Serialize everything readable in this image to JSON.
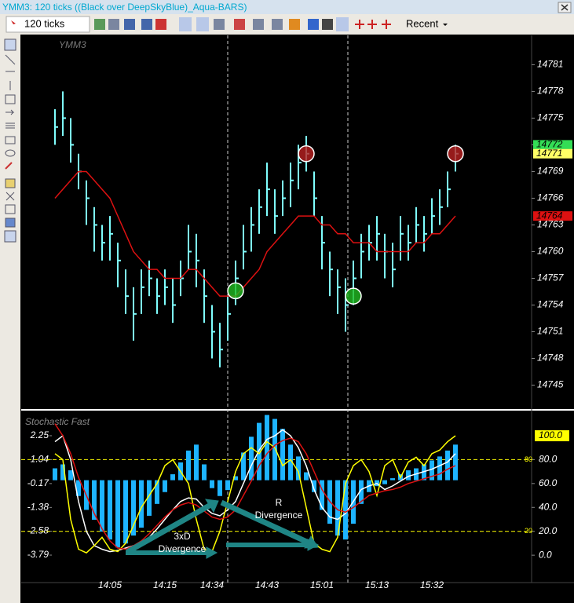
{
  "window": {
    "title": "YMM3: 120 ticks ((Black over DeepSkyBlue)_Aqua-BARS)"
  },
  "toolbar": {
    "interval": "120 ticks",
    "template": "Recent"
  },
  "chart_data": [
    {
      "type": "ohlc",
      "title": "YMM3",
      "ylim": [
        14742.4,
        14784.3
      ],
      "yticks": [
        14745,
        14748,
        14751,
        14754,
        14757,
        14760,
        14763,
        14766,
        14769,
        14772,
        14775,
        14778,
        14781
      ],
      "series": [
        {
          "style": "bars",
          "color": "#7fffff",
          "high": [
            14776,
            14778,
            14775,
            14771,
            14768,
            14765,
            14763,
            14764,
            14761,
            14758,
            14756,
            14758,
            14759,
            14757,
            14758,
            14757,
            14759,
            14763,
            14762,
            14758,
            14754,
            14752,
            14755,
            14759,
            14763,
            14765,
            14767,
            14770,
            14767,
            14768,
            14770,
            14772,
            14773,
            14769,
            14764,
            14760,
            14758,
            14757,
            14759,
            14762,
            14763,
            14764,
            14762,
            14761,
            14764,
            14763,
            14765,
            14764,
            14766,
            14767,
            14769,
            14772
          ],
          "low": [
            14772,
            14773,
            14770,
            14767,
            14763,
            14760,
            14759,
            14759,
            14756,
            14753,
            14750,
            14753,
            14755,
            14753,
            14754,
            14752,
            14755,
            14758,
            14756,
            14752,
            14748,
            14747,
            14750,
            14754,
            14758,
            14760,
            14762,
            14764,
            14762,
            14764,
            14765,
            14767,
            14769,
            14764,
            14758,
            14755,
            14753,
            14751,
            14754,
            14757,
            14759,
            14759,
            14757,
            14756,
            14759,
            14759,
            14761,
            14760,
            14762,
            14763,
            14765,
            14769
          ],
          "close": [
            14774,
            14775,
            14772,
            14769,
            14766,
            14763,
            14761,
            14762,
            14759,
            14755,
            14753,
            14756,
            14757,
            14755,
            14756,
            14754,
            14757,
            14760,
            14759,
            14755,
            14751,
            14749,
            14753,
            14757,
            14760,
            14763,
            14765,
            14767,
            14764,
            14766,
            14768,
            14770,
            14771,
            14766,
            14761,
            14758,
            14756,
            14754,
            14757,
            14760,
            14761,
            14762,
            14760,
            14758,
            14762,
            14761,
            14763,
            14762,
            14764,
            14765,
            14767,
            14771
          ]
        },
        {
          "style": "line",
          "color": "#dd1111",
          "values": [
            14766,
            14767,
            14768,
            14769,
            14769,
            14768,
            14767,
            14766,
            14764,
            14762,
            14760,
            14759,
            14758,
            14758,
            14757,
            14757,
            14757,
            14758,
            14758,
            14757,
            14756,
            14755,
            14755,
            14755,
            14756,
            14757,
            14758,
            14760,
            14761,
            14762,
            14763,
            14764,
            14764,
            14764,
            14763,
            14763,
            14762,
            14762,
            14761,
            14761,
            14761,
            14760,
            14760,
            14760,
            14760,
            14760,
            14761,
            14761,
            14762,
            14762,
            14763,
            14764
          ]
        },
        {
          "style": "circle",
          "color": "#22bb22",
          "values": [
            null,
            null,
            null,
            null,
            null,
            null,
            null,
            null,
            null,
            null,
            null,
            null,
            null,
            null,
            null,
            null,
            null,
            null,
            null,
            null,
            null,
            null,
            null,
            14755.6,
            null,
            null,
            null,
            null,
            null,
            null,
            null,
            null,
            null,
            null,
            null,
            null,
            null,
            null,
            14755,
            null,
            null,
            null,
            null,
            null,
            null,
            null,
            null,
            null,
            null,
            null,
            null,
            null
          ]
        },
        {
          "style": "circle",
          "color": "#bb2222",
          "values": [
            null,
            null,
            null,
            null,
            null,
            null,
            null,
            null,
            null,
            null,
            null,
            null,
            null,
            null,
            null,
            null,
            null,
            null,
            null,
            null,
            null,
            null,
            null,
            null,
            null,
            null,
            null,
            null,
            null,
            null,
            null,
            null,
            14771,
            null,
            null,
            null,
            null,
            null,
            null,
            null,
            null,
            null,
            null,
            null,
            null,
            null,
            null,
            null,
            null,
            null,
            null,
            14771
          ]
        }
      ],
      "price_tags": [
        {
          "value": 14772,
          "color": "#33dd55"
        },
        {
          "value": 14771,
          "color": "#ffff66"
        },
        {
          "value": 14764,
          "color": "#dd1111"
        }
      ]
    },
    {
      "type": "stochastic",
      "title": "Stochastic Fast",
      "categories": [
        null,
        null,
        null,
        null,
        null,
        null,
        null,
        "14:05",
        null,
        null,
        null,
        null,
        null,
        null,
        "14:15",
        null,
        null,
        null,
        null,
        null,
        "14:34",
        null,
        null,
        null,
        null,
        null,
        null,
        "14:43",
        null,
        null,
        null,
        null,
        null,
        null,
        "15:01",
        null,
        null,
        null,
        null,
        null,
        null,
        "15:13",
        null,
        null,
        null,
        null,
        null,
        null,
        "15:32",
        null,
        null,
        null
      ],
      "ylim": [
        -5.1,
        3.44
      ],
      "yticks": [
        2.25,
        1.04,
        -0.17,
        -1.38,
        -2.58,
        -3.79
      ],
      "y2lim": [
        -21.6,
        119.7
      ],
      "y2ticks": [
        {
          "value": 80,
          "label": "80.0"
        },
        {
          "value": 60,
          "label": "60.0"
        },
        {
          "value": 40,
          "label": "40.0"
        },
        {
          "value": 20,
          "label": "20.0"
        },
        {
          "value": 0,
          "label": "0.0"
        }
      ],
      "levels": [
        80,
        20
      ],
      "tag": {
        "value": 100,
        "label": "100.0",
        "color": "#ffff00"
      },
      "series": [
        {
          "style": "histogram",
          "color": "#1eb4ff",
          "values": [
            0.6,
            0.8,
            0.5,
            -0.8,
            -1.5,
            -2.0,
            -2.6,
            -3.0,
            -3.4,
            -3.2,
            -2.8,
            -2.4,
            -1.8,
            -1.2,
            -0.6,
            0.3,
            0.9,
            1.5,
            1.8,
            0.8,
            -0.4,
            -0.8,
            -0.5,
            0.2,
            1.4,
            2.2,
            2.9,
            3.3,
            3.1,
            2.6,
            1.8,
            1.2,
            0.4,
            -0.6,
            -1.5,
            -2.2,
            -2.8,
            -3.0,
            -2.2,
            -1.2,
            -0.6,
            -0.3,
            -0.2,
            0.1,
            0.3,
            0.5,
            0.6,
            0.8,
            1.0,
            1.2,
            1.5,
            1.8
          ]
        },
        {
          "style": "line",
          "axis": "y2",
          "color": "#ffffff",
          "values": [
            95,
            100,
            80,
            45,
            20,
            8,
            5,
            3,
            4,
            6,
            8,
            10,
            15,
            22,
            30,
            38,
            45,
            48,
            47,
            40,
            35,
            33,
            38,
            45,
            60,
            75,
            88,
            97,
            100,
            105,
            100,
            90,
            75,
            55,
            40,
            32,
            30,
            35,
            45,
            55,
            58,
            60,
            55,
            58,
            62,
            66,
            68,
            70,
            72,
            75,
            78,
            85
          ]
        },
        {
          "style": "line",
          "axis": "y2",
          "color": "#ffff00",
          "values": [
            85,
            80,
            30,
            5,
            2,
            8,
            15,
            5,
            3,
            10,
            25,
            40,
            50,
            60,
            75,
            80,
            70,
            60,
            30,
            5,
            3,
            20,
            45,
            70,
            85,
            90,
            85,
            95,
            90,
            75,
            80,
            70,
            40,
            10,
            5,
            3,
            15,
            60,
            75,
            80,
            70,
            50,
            75,
            80,
            65,
            78,
            82,
            75,
            85,
            88,
            95,
            100
          ]
        },
        {
          "style": "line",
          "axis": "y2",
          "color": "#dd1111",
          "values": [
            110,
            100,
            85,
            65,
            50,
            35,
            22,
            12,
            6,
            5,
            8,
            12,
            18,
            25,
            32,
            38,
            42,
            44,
            42,
            37,
            32,
            30,
            32,
            38,
            50,
            62,
            75,
            85,
            92,
            96,
            98,
            95,
            85,
            70,
            55,
            45,
            38,
            36,
            40,
            45,
            50,
            52,
            54,
            55,
            57,
            60,
            62,
            64,
            66,
            68,
            72,
            75
          ]
        }
      ],
      "annotations": [
        {
          "lines": [
            "3xD",
            "Divergence"
          ]
        },
        {
          "lines": [
            "R",
            "Divergence"
          ]
        }
      ]
    }
  ]
}
